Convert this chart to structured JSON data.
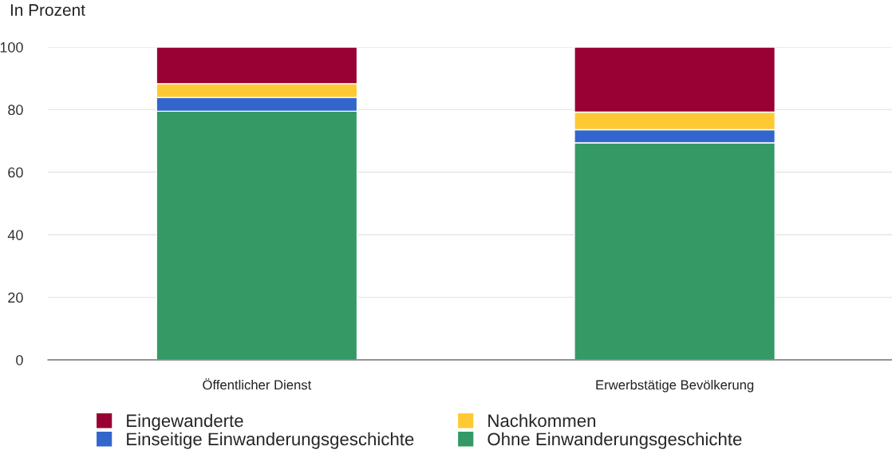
{
  "chart_data": {
    "type": "bar",
    "ylabel": "In Prozent",
    "stacked": true,
    "categories": [
      "Öffentlicher Dienst",
      "Erwerbstätige Bevölkerung"
    ],
    "series": [
      {
        "name": "Ohne Einwanderungsgeschichte",
        "color": "#359966",
        "values": [
          79.5,
          69.4
        ]
      },
      {
        "name": "Einseitige Einwanderungsgeschichte",
        "color": "#3366cc",
        "values": [
          4.4,
          4.2
        ]
      },
      {
        "name": "Nachkommen",
        "color": "#ffc933",
        "values": [
          4.4,
          5.6
        ]
      },
      {
        "name": "Eingewanderte",
        "color": "#990033",
        "values": [
          11.7,
          20.8
        ]
      }
    ],
    "ylim": [
      0,
      100
    ],
    "yticks": [
      0,
      20,
      40,
      60,
      80,
      100
    ],
    "grid": "y",
    "legend": "bottom"
  }
}
